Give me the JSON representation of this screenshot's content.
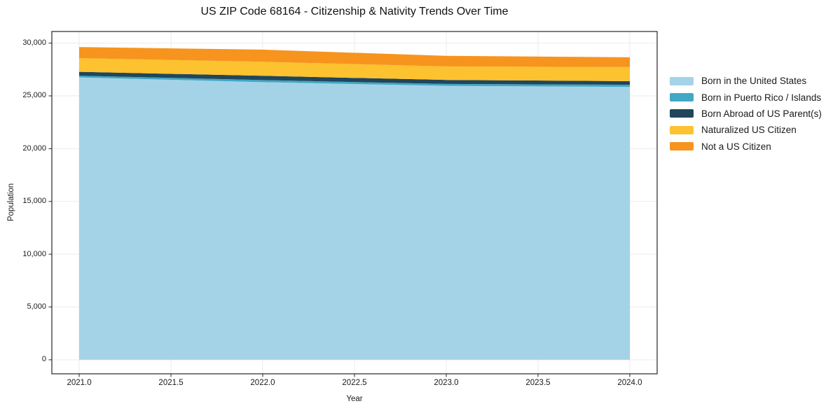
{
  "chart_data": {
    "type": "area",
    "stacked": true,
    "title": "US ZIP Code 68164 - Citizenship & Nativity Trends Over Time",
    "xlabel": "Year",
    "ylabel": "Population",
    "x": [
      2021,
      2022,
      2023,
      2024
    ],
    "series": [
      {
        "name": "Born in the United States",
        "color": "#a4d3e8",
        "values": [
          26750,
          26300,
          25950,
          25850
        ]
      },
      {
        "name": "Born in Puerto Rico / Islands",
        "color": "#41a8c6",
        "values": [
          160,
          200,
          180,
          200
        ]
      },
      {
        "name": "Born Abroad of US Parent(s)",
        "color": "#21465a",
        "values": [
          370,
          400,
          380,
          350
        ]
      },
      {
        "name": "Naturalized US Citizen",
        "color": "#fdc22f",
        "values": [
          1290,
          1330,
          1280,
          1330
        ]
      },
      {
        "name": "Not a US Citizen",
        "color": "#f7941e",
        "values": [
          1060,
          1150,
          1000,
          930
        ]
      }
    ],
    "stacked_totals": [
      29630,
      29380,
      28790,
      28660
    ],
    "xlim": [
      2020.851,
      2024.149
    ],
    "ylim": [
      -1330,
      31100
    ],
    "xticks": {
      "values": [
        2021.0,
        2021.5,
        2022.0,
        2022.5,
        2023.0,
        2023.5,
        2024.0
      ],
      "labels": [
        "2021.0",
        "2021.5",
        "2022.0",
        "2022.5",
        "2023.0",
        "2023.5",
        "2024.0"
      ]
    },
    "yticks": {
      "values": [
        0,
        5000,
        10000,
        15000,
        20000,
        25000,
        30000
      ],
      "labels": [
        "0",
        "5,000",
        "10,000",
        "15,000",
        "20,000",
        "25,000",
        "30,000"
      ]
    },
    "grid": true,
    "grid_color": "#ebebeb",
    "axis_color": "#262626",
    "legend_position": "right"
  }
}
